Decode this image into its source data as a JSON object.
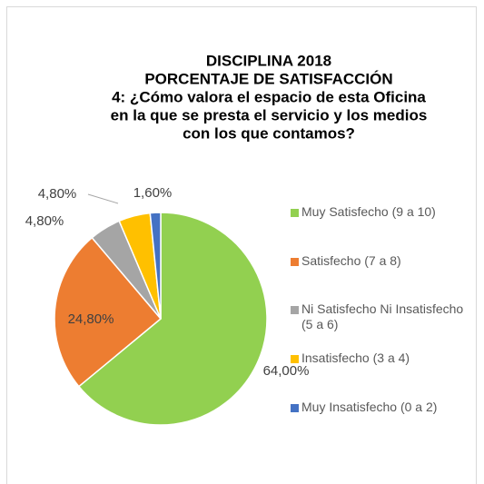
{
  "chart_data": {
    "type": "pie",
    "title": [
      "DISCIPLINA 2018",
      "PORCENTAJE DE SATISFACCIÓN",
      "4: ¿Cómo valora el espacio de esta Oficina",
      "en la que se presta el servicio y los medios",
      "con los que contamos?"
    ],
    "categories": [
      "Muy Satisfecho (9 a 10)",
      "Satisfecho (7 a 8)",
      "Ni Satisfecho Ni Insatisfecho (5 a 6)",
      "Insatisfecho (3 a 4)",
      "Muy Insatisfecho (0 a 2)"
    ],
    "values": [
      64,
      24.8,
      4.8,
      4.8,
      1.6
    ],
    "value_labels": [
      "64,00%",
      "24,80%",
      "4,80%",
      "4,80%",
      "1,60%"
    ],
    "colors": [
      "#92d050",
      "#ed7d31",
      "#a5a5a5",
      "#ffc000",
      "#4472c4"
    ],
    "legend": "right"
  }
}
